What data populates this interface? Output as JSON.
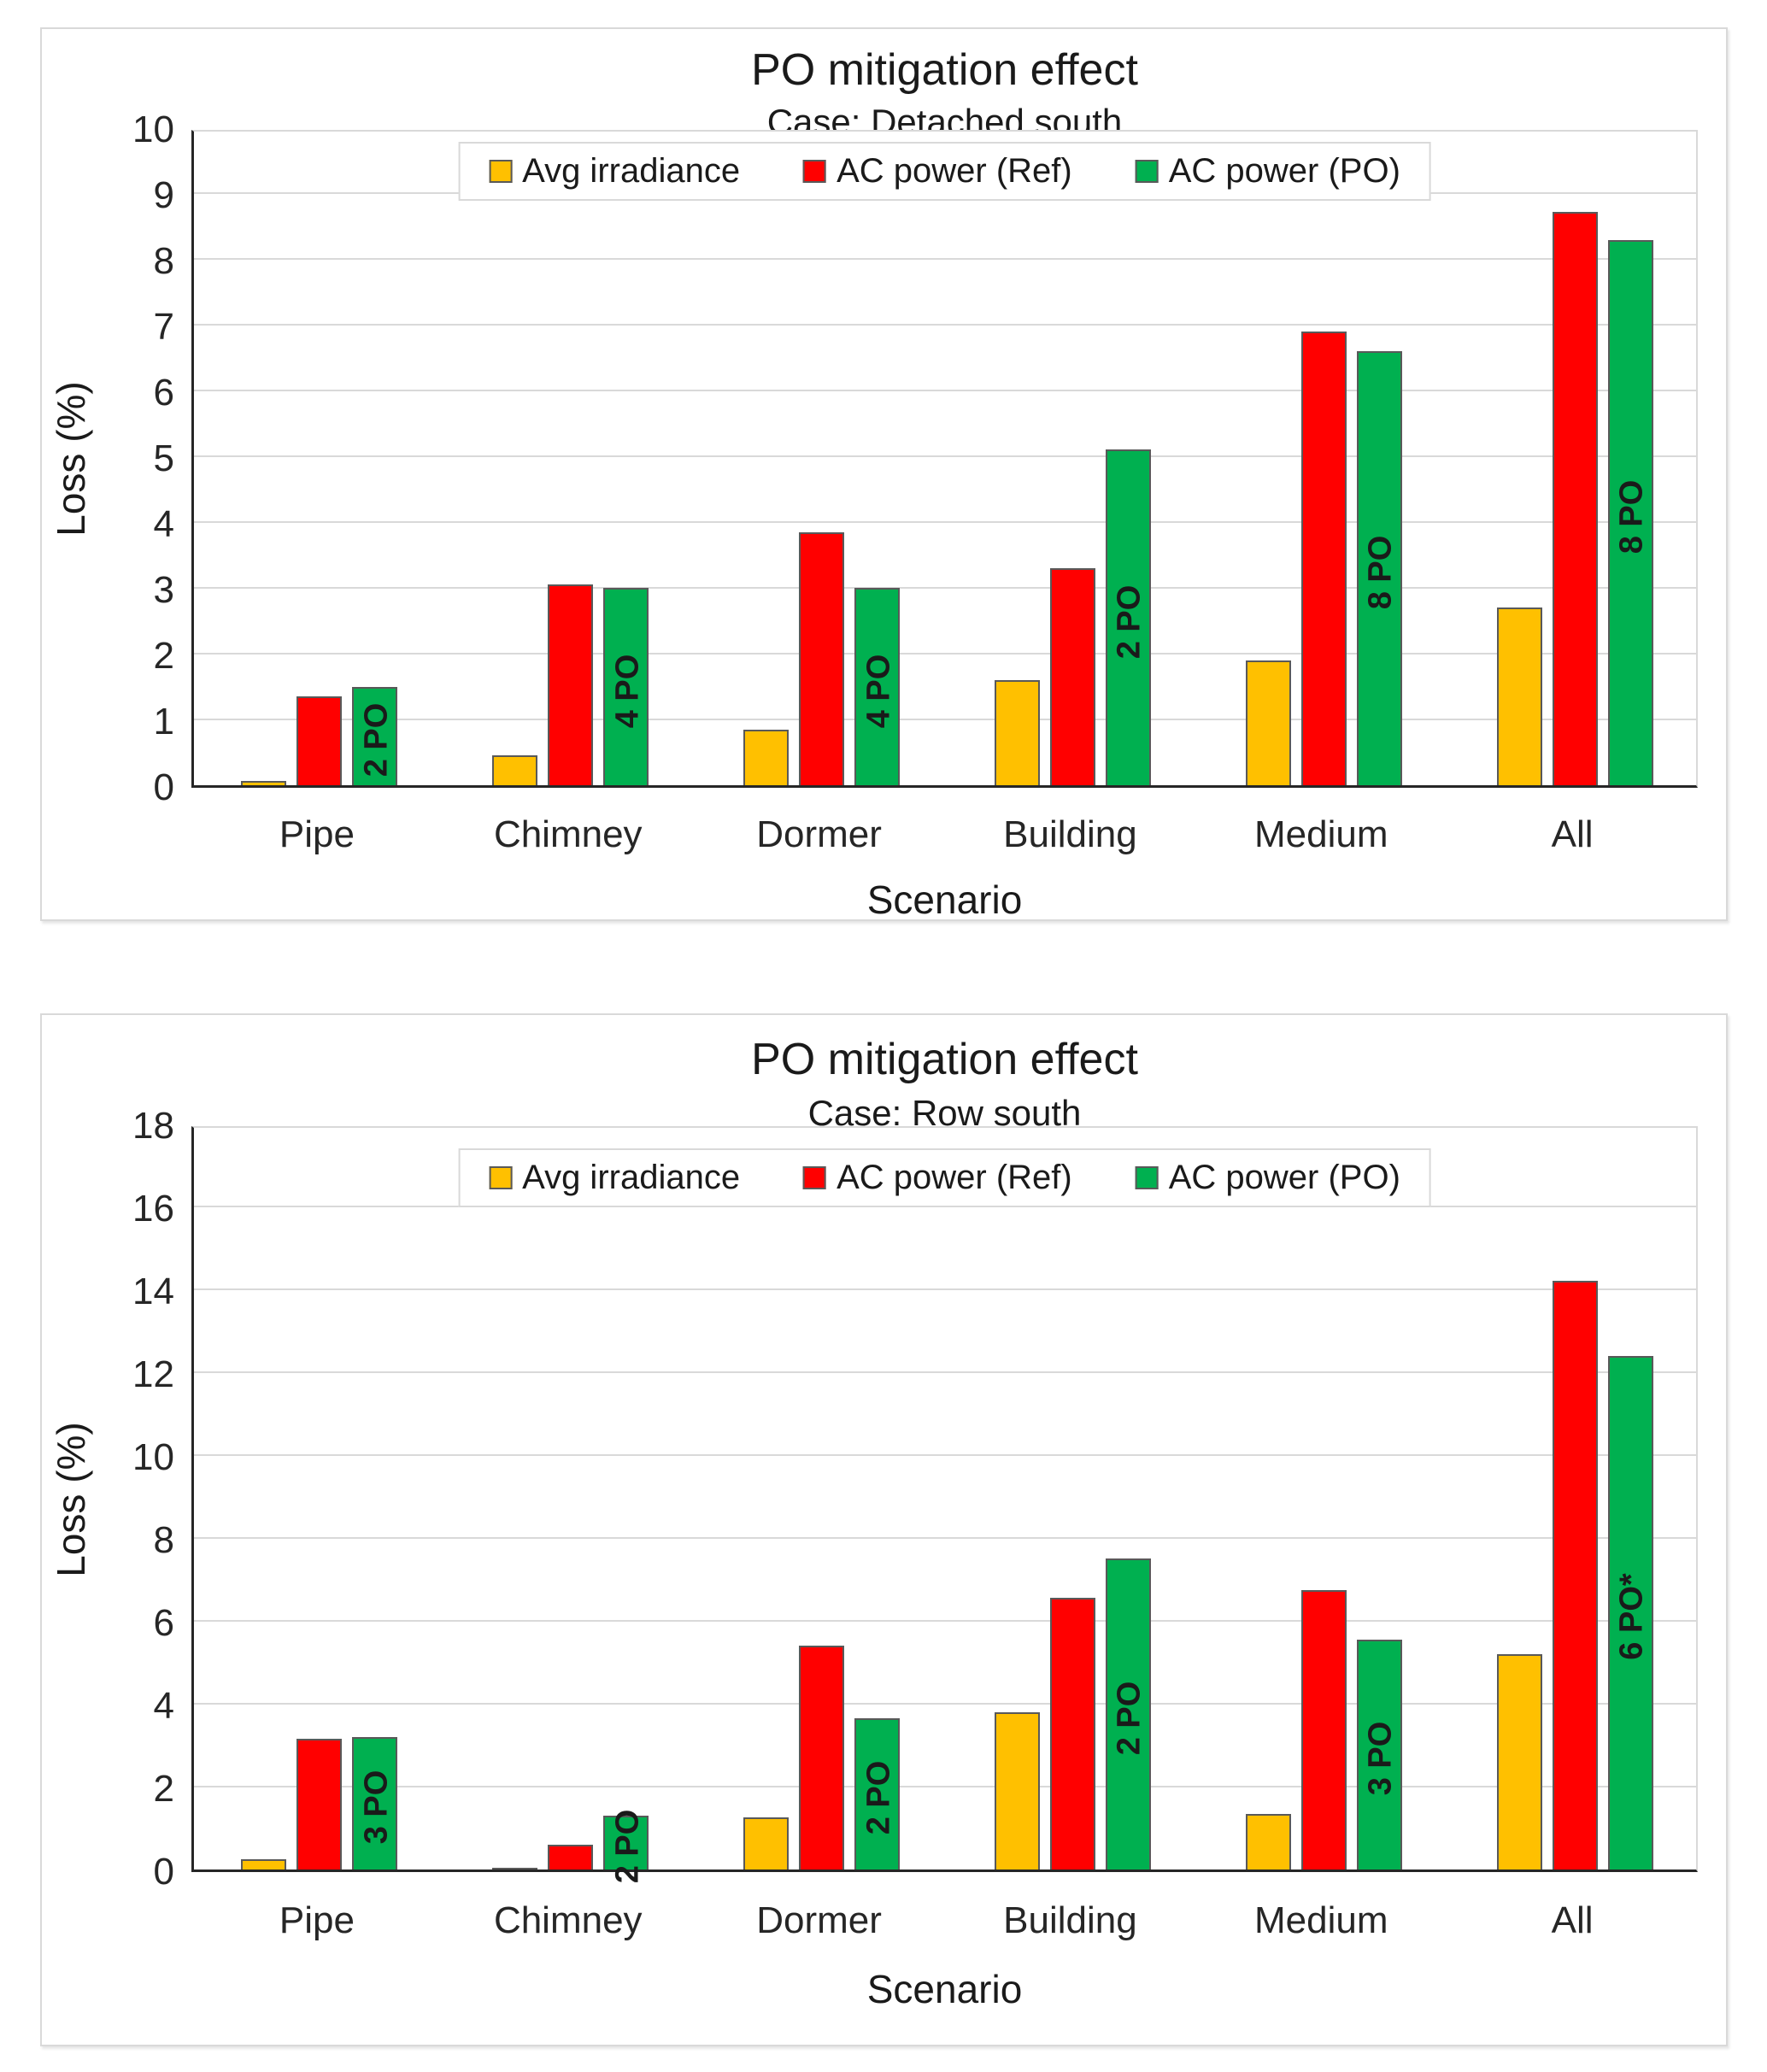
{
  "page": {
    "background": "#ffffff",
    "description_colors": {
      "avg_irradiance": "#FFC000",
      "ac_power_ref": "#FF0000",
      "ac_power_po": "#00B050",
      "bar_outline": "#595959",
      "gridline": "#d9d9d9",
      "axis_line": "#262626"
    }
  },
  "chart_data": [
    {
      "type": "bar",
      "title": "PO mitigation effect",
      "subtitle": "Case: Detached south",
      "xlabel": "Scenario",
      "ylabel": "Loss (%)",
      "ylim": [
        0,
        10
      ],
      "ytick_step": 1,
      "grid": true,
      "legend_position": "top-center-inside",
      "categories": [
        "Pipe",
        "Chimney",
        "Dormer",
        "Building",
        "Medium",
        "All"
      ],
      "series": [
        {
          "name": "Avg irradiance",
          "color": "#FFC000",
          "values": [
            0.07,
            0.45,
            0.85,
            1.6,
            1.9,
            2.7
          ]
        },
        {
          "name": "AC power (Ref)",
          "color": "#FF0000",
          "values": [
            1.35,
            3.05,
            3.85,
            3.3,
            6.9,
            8.72
          ]
        },
        {
          "name": "AC power (PO)",
          "color": "#00B050",
          "values": [
            1.5,
            3.0,
            3.0,
            5.1,
            6.6,
            8.28
          ],
          "bar_labels": [
            "2 PO",
            "4 PO",
            "4 PO",
            "2 PO",
            "8 PO",
            "8 PO"
          ]
        }
      ]
    },
    {
      "type": "bar",
      "title": "PO mitigation effect",
      "subtitle": "Case: Row south",
      "xlabel": "Scenario",
      "ylabel": "Loss (%)",
      "ylim": [
        0,
        18
      ],
      "ytick_step": 2,
      "grid": true,
      "legend_position": "top-center-inside",
      "categories": [
        "Pipe",
        "Chimney",
        "Dormer",
        "Building",
        "Medium",
        "All"
      ],
      "series": [
        {
          "name": "Avg irradiance",
          "color": "#FFC000",
          "values": [
            0.25,
            0.05,
            1.25,
            3.8,
            1.35,
            5.2
          ]
        },
        {
          "name": "AC power (Ref)",
          "color": "#FF0000",
          "values": [
            3.15,
            0.6,
            5.4,
            6.55,
            6.75,
            14.2
          ]
        },
        {
          "name": "AC power (PO)",
          "color": "#00B050",
          "values": [
            3.2,
            1.3,
            3.65,
            7.5,
            5.55,
            12.4
          ],
          "bar_labels": [
            "3 PO",
            "2 PO",
            "2 PO",
            "2 PO",
            "3 PO",
            "6 PO*"
          ]
        }
      ]
    }
  ]
}
